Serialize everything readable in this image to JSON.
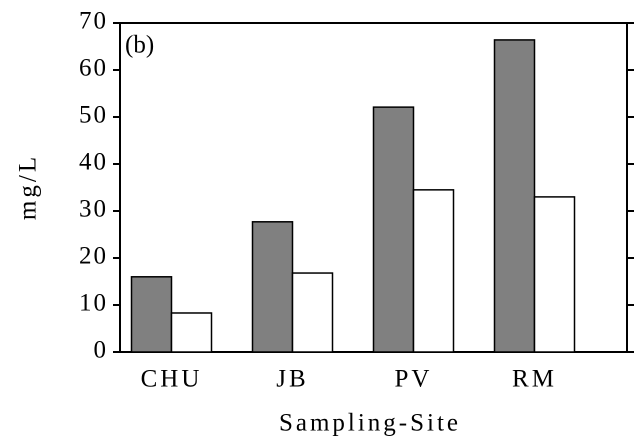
{
  "chart_data": {
    "type": "bar",
    "annotation": "(b)",
    "x_label": "Sampling-Site",
    "y_label": "mg/L",
    "categories": [
      "CHU",
      "JB",
      "PV",
      "RM"
    ],
    "series": [
      {
        "color": "#808080",
        "values": [
          16.0,
          27.7,
          52.1,
          66.4
        ]
      },
      {
        "color": "#ffffff",
        "values": [
          8.3,
          16.8,
          34.5,
          33.0
        ]
      }
    ],
    "ylim": [
      0,
      70
    ],
    "yticks": [
      0,
      10,
      20,
      30,
      40,
      50,
      60,
      70
    ],
    "grid": false
  }
}
